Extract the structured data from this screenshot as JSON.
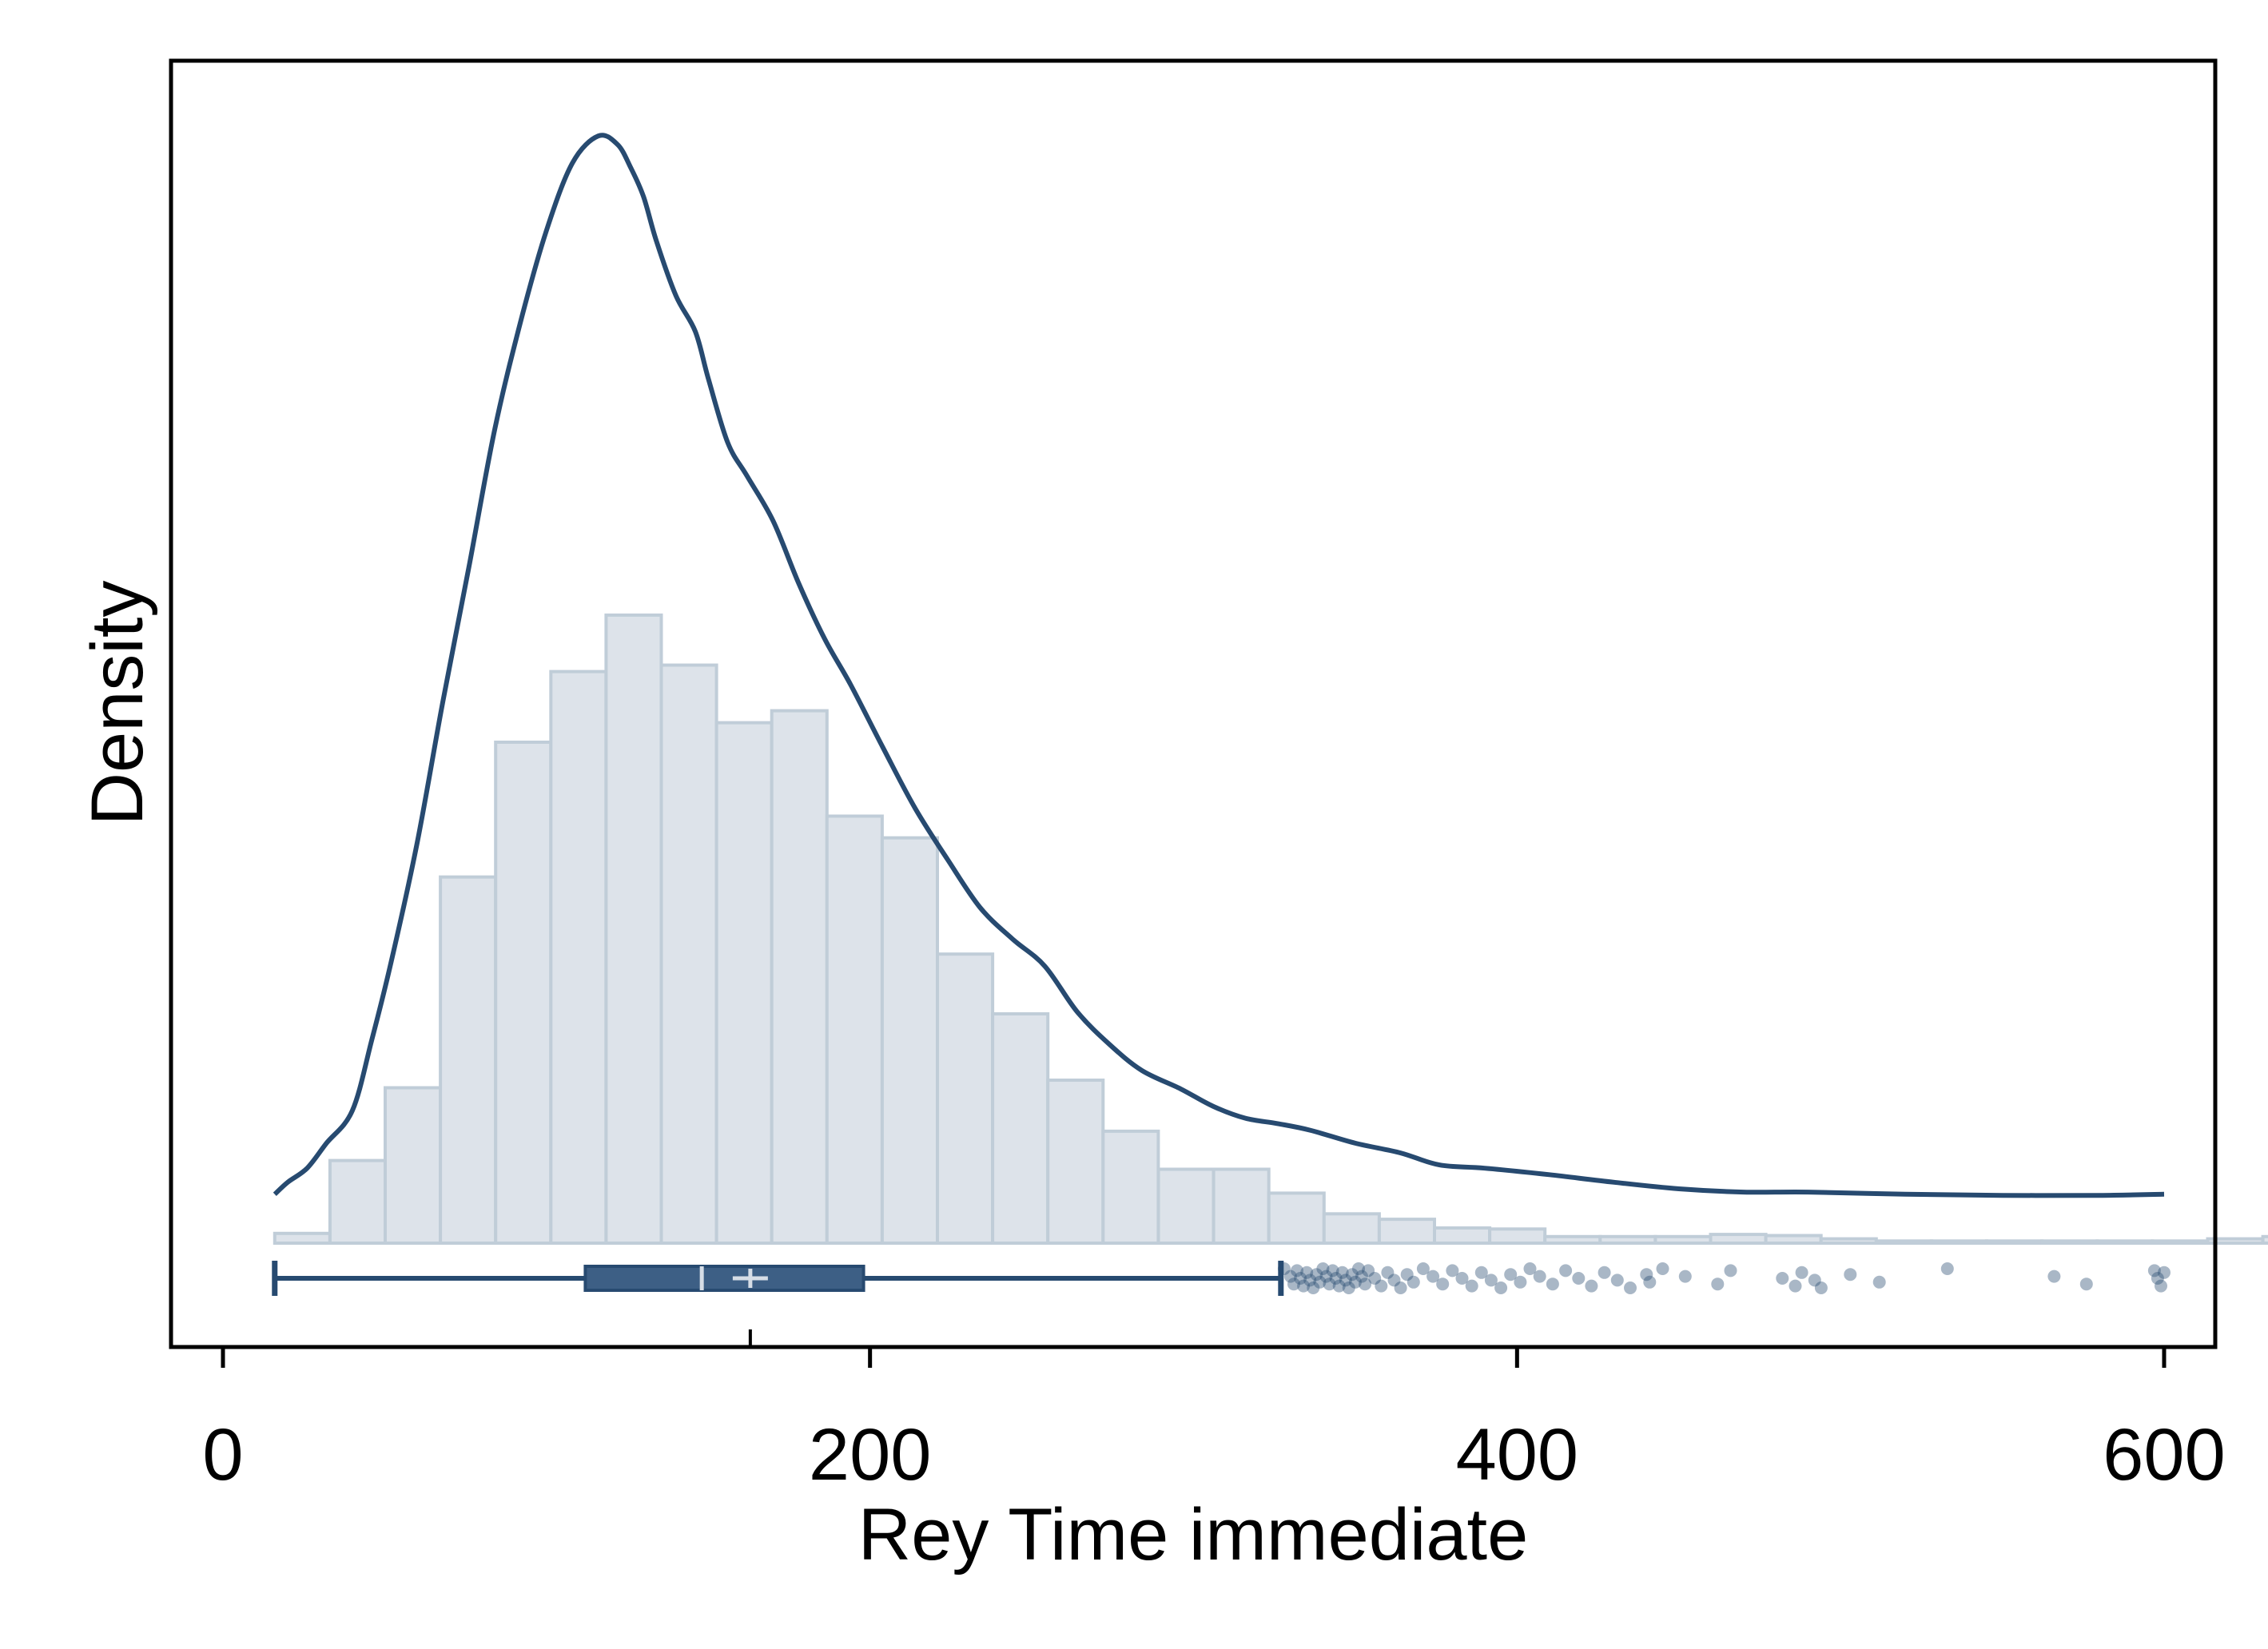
{
  "chart_data": {
    "type": "histogram",
    "xlabel": "Rey Time immediate",
    "ylabel": "Density",
    "xlim": [
      -8,
      614
    ],
    "x_ticks": [
      0,
      200,
      400,
      600
    ],
    "x_tick_labels": [
      "0",
      "200",
      "400",
      "600"
    ],
    "y_ticks_shown": false,
    "grid": false,
    "legend": "none",
    "colors": {
      "bar_fill": "#dde3ea",
      "bar_stroke": "#c0cdd8",
      "line": "#274a70",
      "box_fill": "#3d5f85",
      "outlier": "#274a70"
    },
    "histogram": {
      "bin_width": 17.07,
      "bin_start": 16,
      "heights": [
        0.9,
        7.6,
        14.3,
        33.7,
        46.1,
        52.6,
        57.8,
        53.2,
        47.9,
        49.0,
        39.3,
        37.3,
        26.6,
        21.1,
        15.0,
        10.3,
        6.8,
        6.8,
        4.6,
        2.7,
        2.2,
        1.4,
        1.3,
        0.6,
        0.6,
        0.6,
        0.8,
        0.7,
        0.4,
        0.2,
        0.2,
        0.2,
        0.2,
        0.2,
        0.2,
        0.4,
        0.6,
        0.6,
        0.6,
        0.6,
        0.6,
        0.6,
        0.4,
        0.4,
        0.5,
        0.4,
        0.4,
        0.4,
        0.4,
        0.4,
        0.4,
        0.4,
        0.4,
        0.4,
        0.4,
        0.5,
        0.5,
        0.5,
        0.5,
        0.5
      ]
    },
    "density_curve": {
      "x": [
        16,
        20,
        26,
        32,
        40,
        46,
        52,
        60,
        68,
        76,
        84,
        92,
        100,
        108,
        116,
        122,
        126,
        130,
        134,
        140,
        146,
        150,
        156,
        162,
        170,
        178,
        186,
        194,
        204,
        214,
        224,
        234,
        244,
        254,
        264,
        274,
        284,
        296,
        306,
        316,
        326,
        336,
        350,
        364,
        376,
        390,
        410,
        430,
        450,
        470,
        490,
        520,
        550,
        580,
        600
      ],
      "y": [
        4.5,
        5.6,
        6.9,
        9.2,
        12.2,
        18.7,
        25.9,
        36.8,
        49.9,
        62.2,
        74.9,
        84.8,
        93.2,
        99.4,
        101.9,
        101.1,
        99.0,
        96.3,
        92.2,
        87.2,
        83.9,
        79.6,
        73.7,
        70.6,
        66.5,
        60.7,
        55.6,
        51.4,
        45.6,
        40.0,
        35.3,
        30.9,
        28.0,
        25.5,
        21.3,
        18.3,
        15.9,
        14.2,
        12.6,
        11.5,
        11.0,
        10.4,
        9.2,
        8.3,
        7.2,
        6.9,
        6.3,
        5.6,
        5.0,
        4.7,
        4.7,
        4.5,
        4.4,
        4.4,
        4.5
      ]
    },
    "boxplot": {
      "whisker_low": 16,
      "q1": 112,
      "median": 148,
      "mean": 163,
      "q3": 198,
      "whisker_high": 327
    },
    "outliers": [
      328,
      330,
      331,
      332,
      333,
      334,
      335,
      336,
      337,
      338,
      339,
      340,
      341,
      342,
      343,
      344,
      345,
      346,
      347,
      348,
      349,
      350,
      351,
      352,
      353,
      354,
      356,
      358,
      360,
      362,
      364,
      366,
      368,
      371,
      374,
      377,
      380,
      383,
      386,
      389,
      392,
      395,
      398,
      401,
      404,
      407,
      411,
      415,
      419,
      423,
      427,
      431,
      435,
      440,
      441,
      445,
      452,
      462,
      466,
      482,
      486,
      488,
      492,
      494,
      503,
      512,
      533,
      566,
      576,
      597,
      598,
      599,
      600
    ]
  }
}
